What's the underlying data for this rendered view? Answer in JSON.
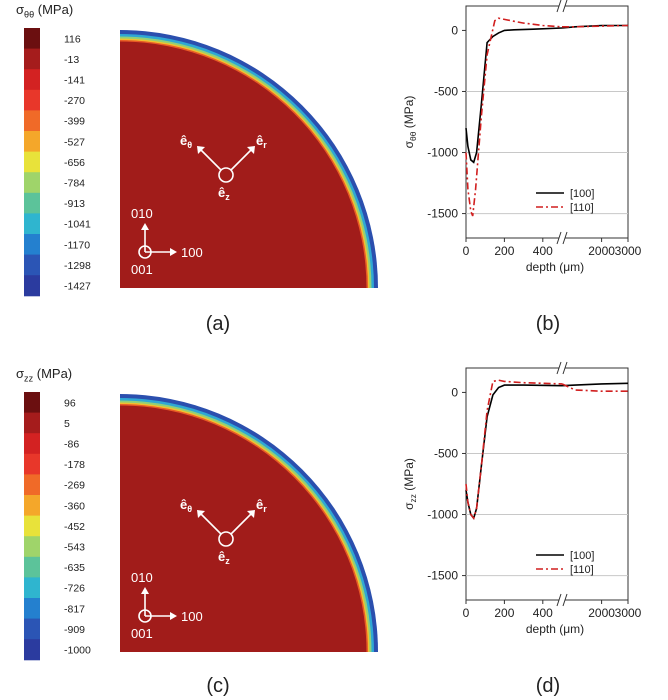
{
  "panels": [
    {
      "id": "a",
      "caption": "(a)",
      "colorbar": {
        "title_sym": "σ",
        "title_sub": "θθ",
        "title_unit": " (MPa)",
        "ticks": [
          "116",
          "-13",
          "-141",
          "-270",
          "-399",
          "-527",
          "-656",
          "-784",
          "-913",
          "-1041",
          "-1170",
          "-1298",
          "-1427"
        ]
      },
      "contour": {
        "basis": [
          "ê",
          "θ",
          "r",
          "z"
        ],
        "axes": [
          "010",
          "100",
          "001"
        ]
      }
    },
    {
      "id": "c",
      "caption": "(c)",
      "colorbar": {
        "title_sym": "σ",
        "title_sub": "zz",
        "title_unit": " (MPa)",
        "ticks": [
          "96",
          "5",
          "-86",
          "-178",
          "-269",
          "-360",
          "-452",
          "-543",
          "-635",
          "-726",
          "-817",
          "-909",
          "-1000"
        ]
      },
      "contour": {
        "basis": [
          "ê",
          "θ",
          "r",
          "z"
        ],
        "axes": [
          "010",
          "100",
          "001"
        ]
      }
    }
  ],
  "colors": {
    "scale": [
      "#6b0f10",
      "#a51c1c",
      "#d32222",
      "#e8372a",
      "#f06a28",
      "#f4a72a",
      "#e8e23a",
      "#9fd46a",
      "#5cc39a",
      "#2fb5cf",
      "#2480cf",
      "#2b55b5",
      "#2b3b9f"
    ],
    "field": "#a11c1a",
    "series_100": "#000000",
    "series_110": "#d11f1f",
    "grid": "#c8c8c8"
  },
  "chart_data": [
    {
      "panel": "b",
      "caption": "(b)",
      "type": "line",
      "ylabel_sym": "σ",
      "ylabel_sub": "θθ",
      "ylabel_unit": " (MPa)",
      "xlabel": "depth (μm)",
      "yticks": [
        "0",
        "-500",
        "-1000",
        "-1500"
      ],
      "xticks_left": [
        "0",
        "200",
        "400"
      ],
      "xticks_right": [
        "2000",
        "3000"
      ],
      "ylim": [
        -1700,
        200
      ],
      "xlim_left": [
        0,
        500
      ],
      "xlim_right": [
        500,
        3000
      ],
      "grid": true,
      "legend_position": "bottom-right",
      "series": [
        {
          "name": "[100]",
          "style": "solid",
          "color": "#000000",
          "left": [
            [
              0,
              -800
            ],
            [
              10,
              -950
            ],
            [
              25,
              -1060
            ],
            [
              40,
              -1080
            ],
            [
              55,
              -1000
            ],
            [
              80,
              -600
            ],
            [
              110,
              -100
            ],
            [
              140,
              -50
            ],
            [
              170,
              -20
            ],
            [
              200,
              0
            ],
            [
              250,
              5
            ],
            [
              350,
              10
            ],
            [
              500,
              20
            ]
          ],
          "right": [
            [
              500,
              20
            ],
            [
              1000,
              30
            ],
            [
              2000,
              40
            ],
            [
              3000,
              40
            ]
          ]
        },
        {
          "name": "[110]",
          "style": "dashdot",
          "color": "#d11f1f",
          "left": [
            [
              0,
              -1000
            ],
            [
              10,
              -1300
            ],
            [
              25,
              -1480
            ],
            [
              35,
              -1520
            ],
            [
              50,
              -1300
            ],
            [
              80,
              -700
            ],
            [
              110,
              -200
            ],
            [
              150,
              80
            ],
            [
              170,
              100
            ],
            [
              200,
              90
            ],
            [
              300,
              60
            ],
            [
              400,
              40
            ],
            [
              500,
              30
            ]
          ],
          "right": [
            [
              500,
              30
            ],
            [
              1000,
              30
            ],
            [
              2000,
              35
            ],
            [
              3000,
              40
            ]
          ]
        }
      ]
    },
    {
      "panel": "d",
      "caption": "(d)",
      "type": "line",
      "ylabel_sym": "σ",
      "ylabel_sub": "zz",
      "ylabel_unit": " (MPa)",
      "xlabel": "depth (μm)",
      "yticks": [
        "0",
        "-500",
        "-1000",
        "-1500"
      ],
      "xticks_left": [
        "0",
        "200",
        "400"
      ],
      "xticks_right": [
        "2000",
        "3000"
      ],
      "ylim": [
        -1700,
        200
      ],
      "xlim_left": [
        0,
        500
      ],
      "xlim_right": [
        500,
        3000
      ],
      "grid": true,
      "legend_position": "bottom-right",
      "series": [
        {
          "name": "[100]",
          "style": "solid",
          "color": "#000000",
          "left": [
            [
              0,
              -800
            ],
            [
              10,
              -900
            ],
            [
              25,
              -1000
            ],
            [
              40,
              -1030
            ],
            [
              55,
              -950
            ],
            [
              80,
              -600
            ],
            [
              110,
              -200
            ],
            [
              140,
              -20
            ],
            [
              170,
              40
            ],
            [
              200,
              60
            ],
            [
              300,
              60
            ],
            [
              500,
              55
            ]
          ],
          "right": [
            [
              500,
              55
            ],
            [
              1000,
              60
            ],
            [
              2000,
              70
            ],
            [
              3000,
              75
            ]
          ]
        },
        {
          "name": "[110]",
          "style": "dashdot",
          "color": "#d11f1f",
          "left": [
            [
              0,
              -750
            ],
            [
              10,
              -900
            ],
            [
              25,
              -1000
            ],
            [
              40,
              -1030
            ],
            [
              55,
              -950
            ],
            [
              80,
              -600
            ],
            [
              110,
              -150
            ],
            [
              140,
              90
            ],
            [
              170,
              100
            ],
            [
              200,
              90
            ],
            [
              300,
              80
            ],
            [
              500,
              70
            ]
          ],
          "right": [
            [
              500,
              70
            ],
            [
              1000,
              20
            ],
            [
              2000,
              10
            ],
            [
              3000,
              10
            ]
          ]
        }
      ]
    }
  ]
}
